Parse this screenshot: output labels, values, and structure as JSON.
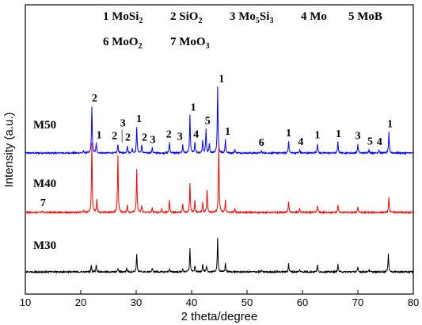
{
  "chart_data": {
    "type": "line",
    "title": "",
    "xlabel": "2 theta/degree",
    "ylabel": "Intensity (a.u.)",
    "xlim": [
      10,
      80
    ],
    "xticks": [
      "10",
      "20",
      "30",
      "40",
      "50",
      "60",
      "70",
      "80"
    ],
    "grid": false,
    "legend": [
      {
        "num": "1",
        "phase": "MoSi",
        "sub": "2"
      },
      {
        "num": "2",
        "phase": "SiO",
        "sub": "2"
      },
      {
        "num": "3",
        "phase": "Mo",
        "sub": "5",
        "phase2": "Si",
        "sub2": "3"
      },
      {
        "num": "4",
        "phase": "Mo",
        "sub": ""
      },
      {
        "num": "5",
        "phase": "MoB",
        "sub": ""
      },
      {
        "num": "6",
        "phase": "MoO",
        "sub": "2"
      },
      {
        "num": "7",
        "phase": "MoO",
        "sub": "3"
      }
    ],
    "series": [
      {
        "name": "M50",
        "color": "#0000ff",
        "peaks": [
          [
            20.5,
            0.03
          ],
          [
            22.0,
            0.62
          ],
          [
            22.8,
            0.13
          ],
          [
            26.7,
            0.12
          ],
          [
            28.4,
            0.1
          ],
          [
            29.3,
            0.06
          ],
          [
            30.1,
            0.35
          ],
          [
            31.0,
            0.1
          ],
          [
            32.9,
            0.07
          ],
          [
            36.0,
            0.14
          ],
          [
            38.4,
            0.11
          ],
          [
            39.7,
            0.5
          ],
          [
            40.6,
            0.14
          ],
          [
            42.0,
            0.17
          ],
          [
            42.6,
            0.32
          ],
          [
            43.2,
            0.12
          ],
          [
            44.7,
            0.88
          ],
          [
            46.1,
            0.18
          ],
          [
            47.8,
            0.05
          ],
          [
            52.6,
            0.03
          ],
          [
            57.5,
            0.16
          ],
          [
            59.5,
            0.04
          ],
          [
            62.7,
            0.13
          ],
          [
            66.4,
            0.15
          ],
          [
            70.0,
            0.12
          ],
          [
            72.0,
            0.05
          ],
          [
            73.8,
            0.04
          ],
          [
            75.6,
            0.28
          ]
        ]
      },
      {
        "name": "M40",
        "color": "#ff0000",
        "peaks": [
          [
            13.0,
            0.02
          ],
          [
            20.5,
            0.03
          ],
          [
            22.0,
            0.93
          ],
          [
            22.9,
            0.17
          ],
          [
            26.7,
            0.77
          ],
          [
            28.4,
            0.1
          ],
          [
            30.1,
            0.57
          ],
          [
            31.0,
            0.09
          ],
          [
            32.9,
            0.06
          ],
          [
            34.6,
            0.05
          ],
          [
            36.0,
            0.16
          ],
          [
            38.4,
            0.11
          ],
          [
            39.7,
            0.39
          ],
          [
            40.6,
            0.16
          ],
          [
            42.0,
            0.13
          ],
          [
            42.8,
            0.29
          ],
          [
            44.9,
            0.88
          ],
          [
            46.1,
            0.16
          ],
          [
            47.8,
            0.05
          ],
          [
            57.5,
            0.15
          ],
          [
            59.5,
            0.05
          ],
          [
            62.7,
            0.09
          ],
          [
            66.4,
            0.1
          ],
          [
            70.0,
            0.08
          ],
          [
            75.6,
            0.2
          ]
        ]
      },
      {
        "name": "M30",
        "color": "#000000",
        "peaks": [
          [
            21.9,
            0.09
          ],
          [
            22.8,
            0.1
          ],
          [
            26.7,
            0.05
          ],
          [
            28.3,
            0.05
          ],
          [
            30.1,
            0.24
          ],
          [
            32.9,
            0.05
          ],
          [
            36.0,
            0.04
          ],
          [
            38.4,
            0.04
          ],
          [
            39.7,
            0.31
          ],
          [
            40.6,
            0.08
          ],
          [
            42.0,
            0.11
          ],
          [
            42.7,
            0.07
          ],
          [
            44.7,
            0.45
          ],
          [
            46.1,
            0.12
          ],
          [
            52.6,
            0.02
          ],
          [
            57.5,
            0.11
          ],
          [
            59.5,
            0.03
          ],
          [
            62.7,
            0.09
          ],
          [
            66.4,
            0.1
          ],
          [
            70.0,
            0.06
          ],
          [
            72.0,
            0.03
          ],
          [
            75.5,
            0.25
          ]
        ]
      }
    ],
    "annotations": [
      {
        "text": "2",
        "x": 22.5,
        "series": "M50"
      },
      {
        "text": "1",
        "x": 23.3,
        "series": "M50"
      },
      {
        "text": "2",
        "x": 26.1,
        "series": "M50"
      },
      {
        "text": "3",
        "x": 27.6,
        "series": "M50",
        "arrow": true
      },
      {
        "text": "2",
        "x": 28.5,
        "series": "M50"
      },
      {
        "text": "1",
        "x": 30.5,
        "series": "M50"
      },
      {
        "text": "2",
        "x": 31.5,
        "series": "M50"
      },
      {
        "text": "3",
        "x": 33.0,
        "series": "M50"
      },
      {
        "text": "2",
        "x": 35.9,
        "series": "M50"
      },
      {
        "text": "3",
        "x": 37.9,
        "series": "M50"
      },
      {
        "text": "1",
        "x": 40.3,
        "series": "M50"
      },
      {
        "text": "4",
        "x": 40.8,
        "series": "M50"
      },
      {
        "text": "5",
        "x": 42.9,
        "series": "M50"
      },
      {
        "text": "1",
        "x": 45.4,
        "series": "M50"
      },
      {
        "text": "1",
        "x": 46.5,
        "series": "M50"
      },
      {
        "text": "6",
        "x": 52.6,
        "series": "M50"
      },
      {
        "text": "1",
        "x": 57.5,
        "series": "M50"
      },
      {
        "text": "4",
        "x": 59.7,
        "series": "M50"
      },
      {
        "text": "1",
        "x": 62.7,
        "series": "M50"
      },
      {
        "text": "1",
        "x": 66.5,
        "series": "M50"
      },
      {
        "text": "3",
        "x": 70.0,
        "series": "M50"
      },
      {
        "text": "5",
        "x": 72.2,
        "series": "M50"
      },
      {
        "text": "4",
        "x": 73.9,
        "series": "M50"
      },
      {
        "text": "1",
        "x": 75.8,
        "series": "M50"
      },
      {
        "text": "7",
        "x": 13.2,
        "series": "M40"
      }
    ]
  }
}
